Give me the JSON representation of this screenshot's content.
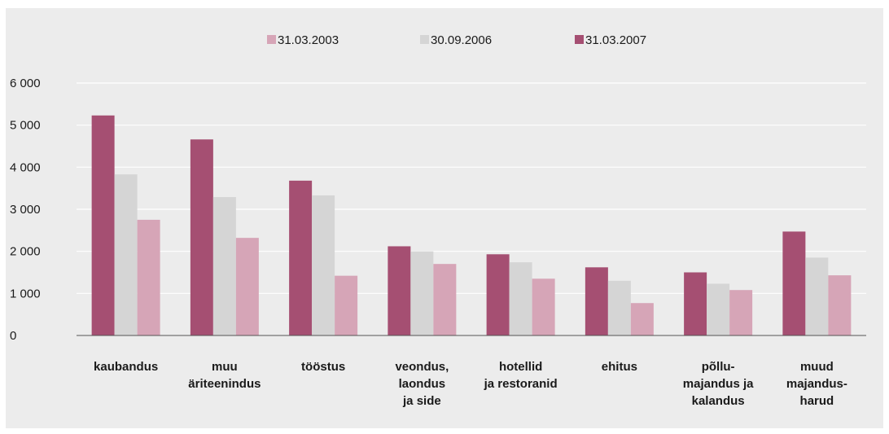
{
  "chart_data": {
    "type": "bar",
    "title": "",
    "xlabel": "",
    "ylabel": "",
    "ylim": [
      0,
      6000
    ],
    "yticks": [
      0,
      1000,
      2000,
      3000,
      4000,
      5000,
      6000
    ],
    "ytick_labels": [
      "0",
      "1 000",
      "2 000",
      "3 000",
      "4 000",
      "5 000",
      "6 000"
    ],
    "grid": true,
    "legend_position": "top-center",
    "legend_order": [
      "31.03.2003",
      "30.09.2006",
      "31.03.2007"
    ],
    "categories": [
      [
        "kaubandus"
      ],
      [
        "muu",
        "äriteenindus"
      ],
      [
        "tööstus"
      ],
      [
        "veondus,",
        "laondus",
        "ja side"
      ],
      [
        "hotellid",
        "ja restoranid"
      ],
      [
        "ehitus"
      ],
      [
        "põllu-",
        "majandus ja",
        "kalandus"
      ],
      [
        "muud",
        "majandus-",
        "harud"
      ]
    ],
    "series": [
      {
        "name": "31.03.2007",
        "color": "#a54f72",
        "values": [
          5230,
          4660,
          3680,
          2120,
          1930,
          1620,
          1500,
          2470
        ]
      },
      {
        "name": "30.09.2006",
        "color": "#d5d5d5",
        "values": [
          3830,
          3290,
          3330,
          2000,
          1740,
          1300,
          1230,
          1850
        ]
      },
      {
        "name": "31.03.2003",
        "color": "#d6a5b7",
        "values": [
          2750,
          2320,
          1420,
          1700,
          1350,
          770,
          1080,
          1430
        ]
      }
    ]
  }
}
